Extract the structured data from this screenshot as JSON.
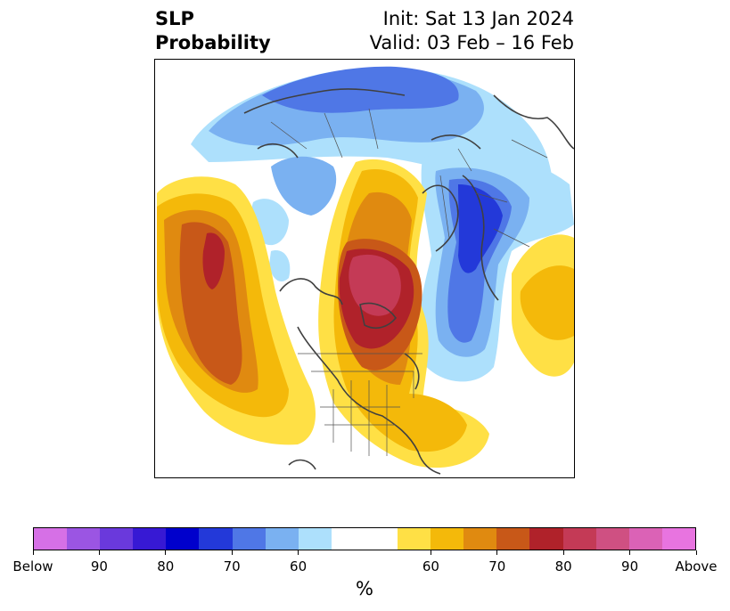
{
  "header": {
    "title_line1": "SLP",
    "title_line2": "Probability",
    "init": "Init: Sat 13 Jan 2024",
    "valid": "Valid: 03 Feb – 16 Feb"
  },
  "colorbar": {
    "colors": [
      "#d670e6",
      "#9b55e3",
      "#6a39dc",
      "#3719d4",
      "#0000cc",
      "#2339d9",
      "#4f77e6",
      "#7ab1f1",
      "#ade0fc",
      "#ffffff",
      "#ffffff",
      "#ffe045",
      "#f4b90a",
      "#e08a10",
      "#c85818",
      "#b0222a",
      "#c43a56",
      "#cf5082",
      "#db62b6",
      "#e874e0"
    ],
    "labels": [
      "Below",
      "90",
      "80",
      "70",
      "60",
      "60",
      "70",
      "80",
      "90",
      "Above"
    ],
    "unit": "%"
  },
  "map": {
    "colors": {
      "blue_light": "#ade0fc",
      "blue_mid": "#7ab1f1",
      "blue_strong": "#4f77e6",
      "blue_deep": "#2339d9",
      "yellow": "#ffe045",
      "orange_light": "#f4b90a",
      "orange": "#e08a10",
      "orange_dark": "#c85818",
      "red": "#b0222a",
      "crimson": "#c43a56"
    }
  }
}
